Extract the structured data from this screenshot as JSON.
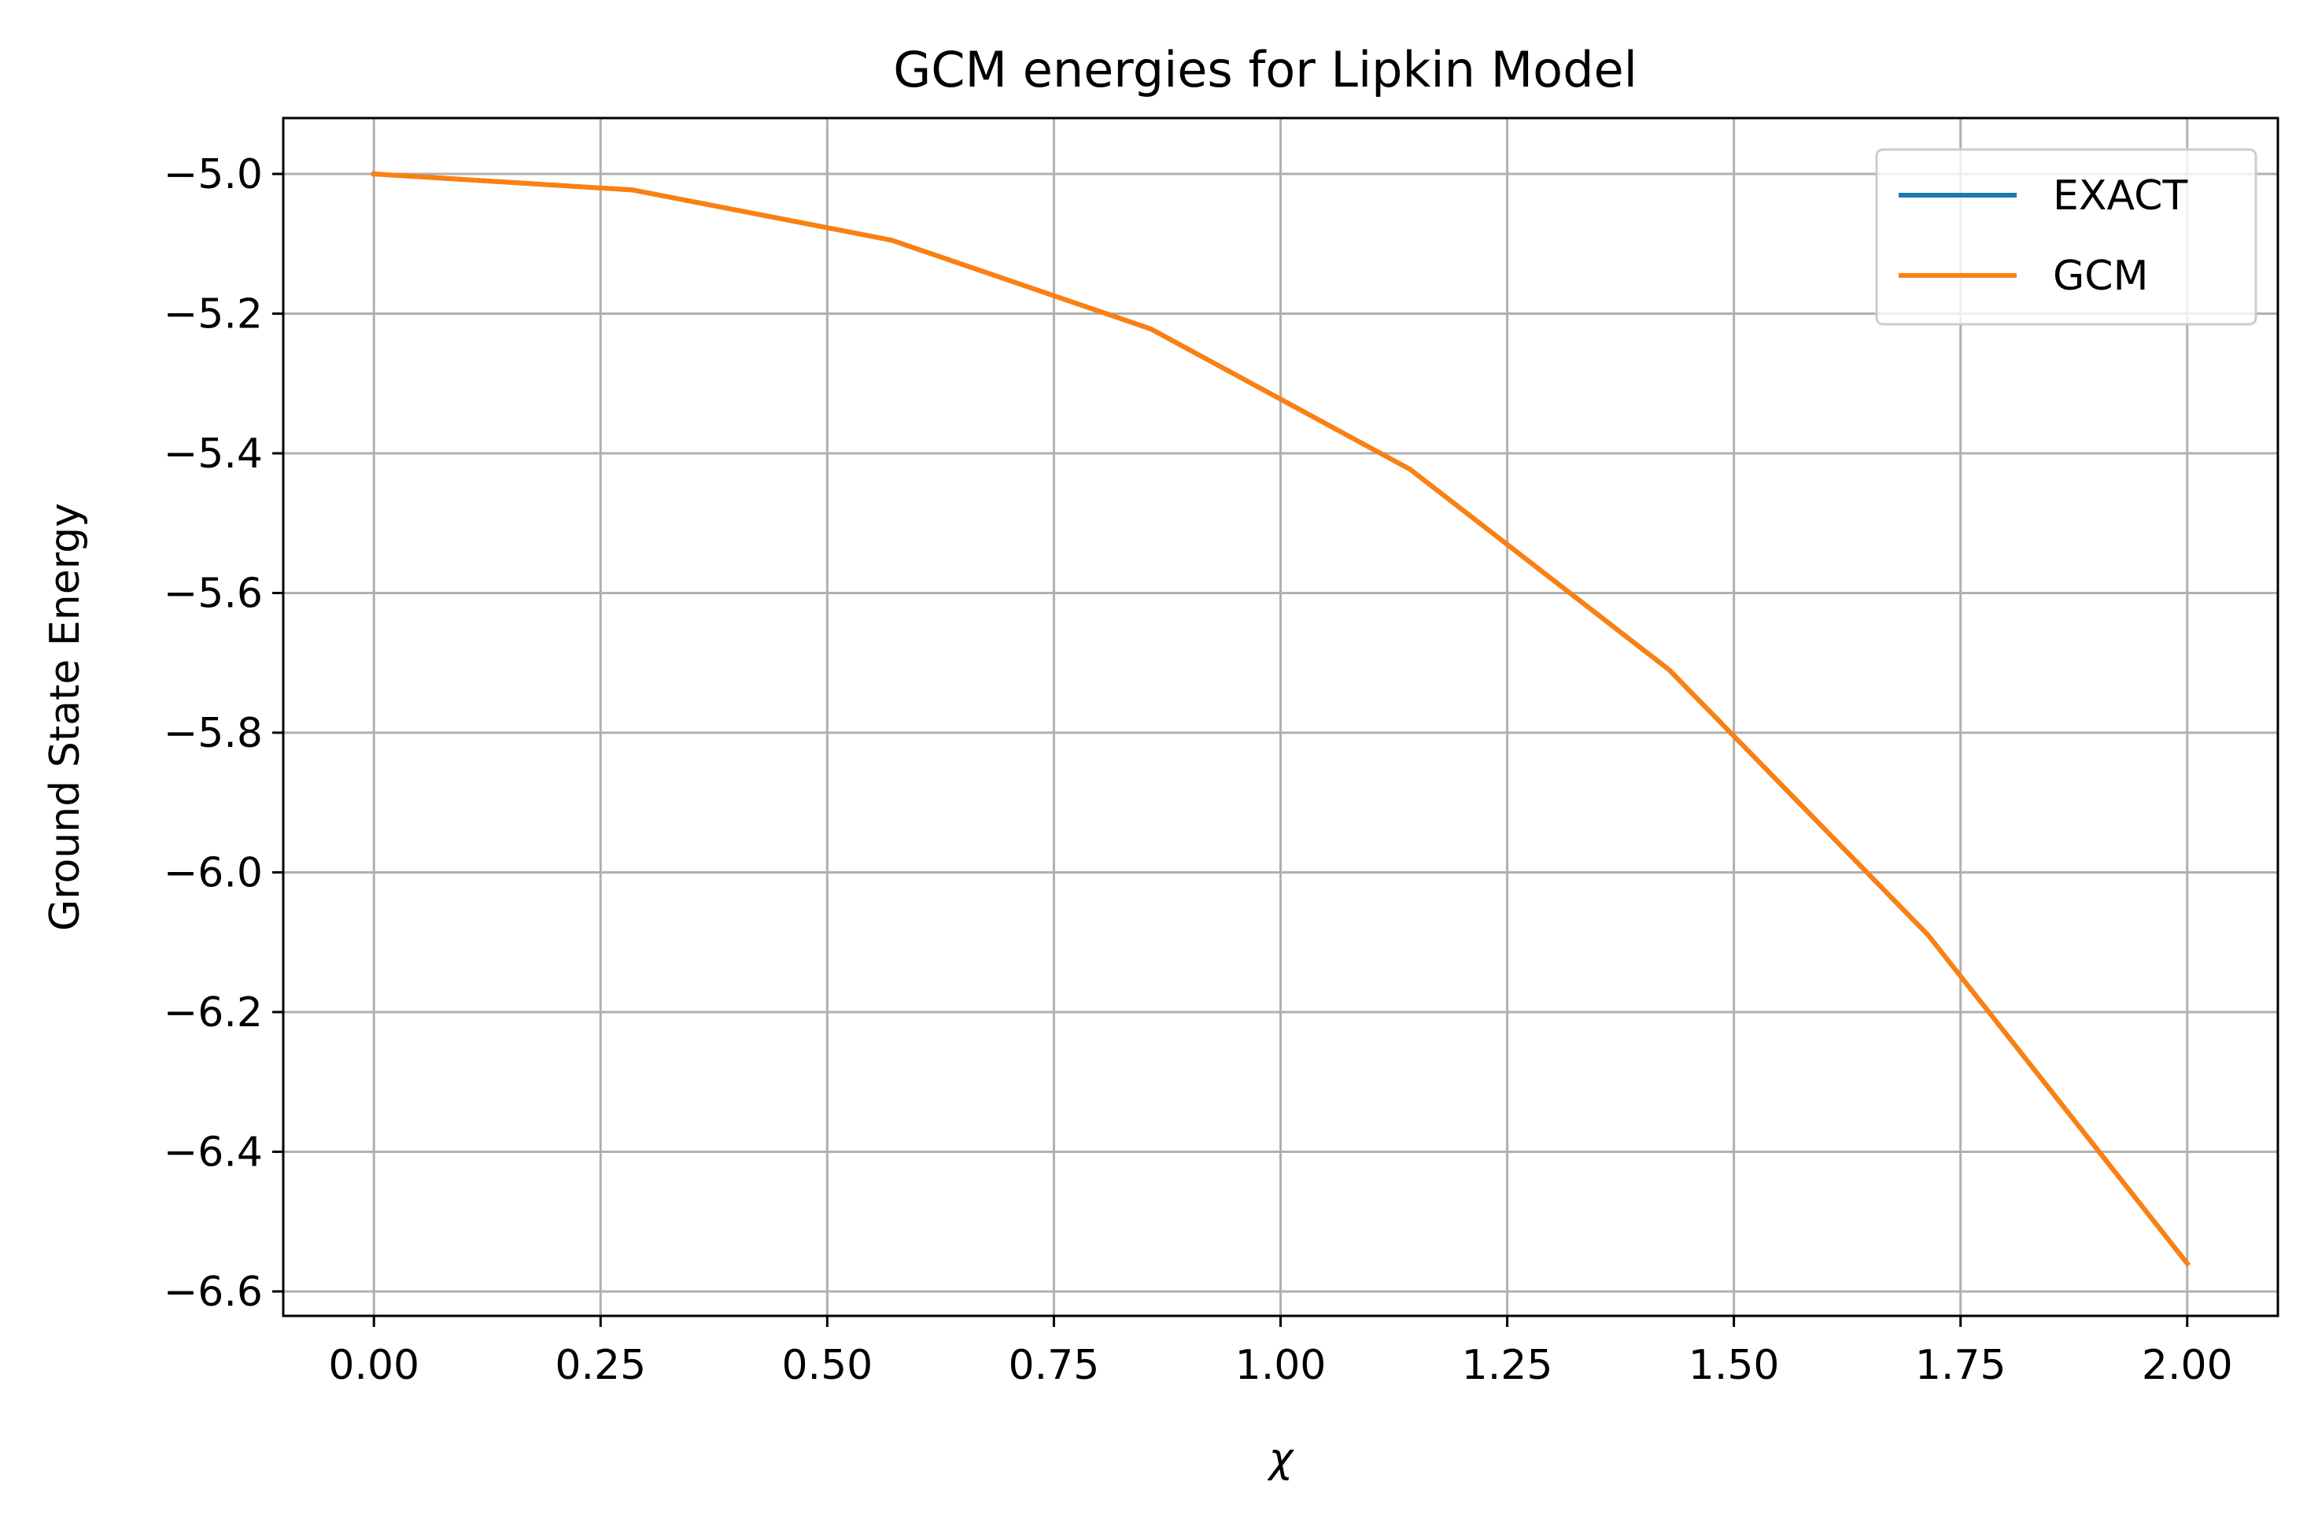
{
  "chart_data": {
    "type": "line",
    "title": "GCM energies for Lipkin Model",
    "xlabel": "χ",
    "ylabel": "Ground State Energy",
    "xlim": [
      -0.1,
      2.1
    ],
    "ylim": [
      -6.635,
      -4.92
    ],
    "xticks": [
      0.0,
      0.25,
      0.5,
      0.75,
      1.0,
      1.25,
      1.5,
      1.75,
      2.0
    ],
    "xtick_labels": [
      "0.00",
      "0.25",
      "0.50",
      "0.75",
      "1.00",
      "1.25",
      "1.50",
      "1.75",
      "2.00"
    ],
    "yticks": [
      -5.0,
      -5.2,
      -5.4,
      -5.6,
      -5.8,
      -6.0,
      -6.2,
      -6.4,
      -6.6
    ],
    "ytick_labels": [
      "−5.0",
      "−5.2",
      "−5.4",
      "−5.6",
      "−5.8",
      "−6.0",
      "−6.2",
      "−6.4",
      "−6.6"
    ],
    "grid": true,
    "legend_position": "top-right",
    "x": [
      0.0,
      0.2857,
      0.5714,
      0.8571,
      1.1429,
      1.4286,
      1.7143,
      2.0
    ],
    "series": [
      {
        "name": "EXACT",
        "color": "#1f77b4",
        "values": [
          -5.0,
          -5.023,
          -5.095,
          -5.222,
          -5.423,
          -5.71,
          -6.09,
          -6.56
        ]
      },
      {
        "name": "GCM",
        "color": "#ff7f0e",
        "values": [
          -5.0,
          -5.023,
          -5.095,
          -5.222,
          -5.423,
          -5.71,
          -6.09,
          -6.56
        ]
      }
    ]
  }
}
